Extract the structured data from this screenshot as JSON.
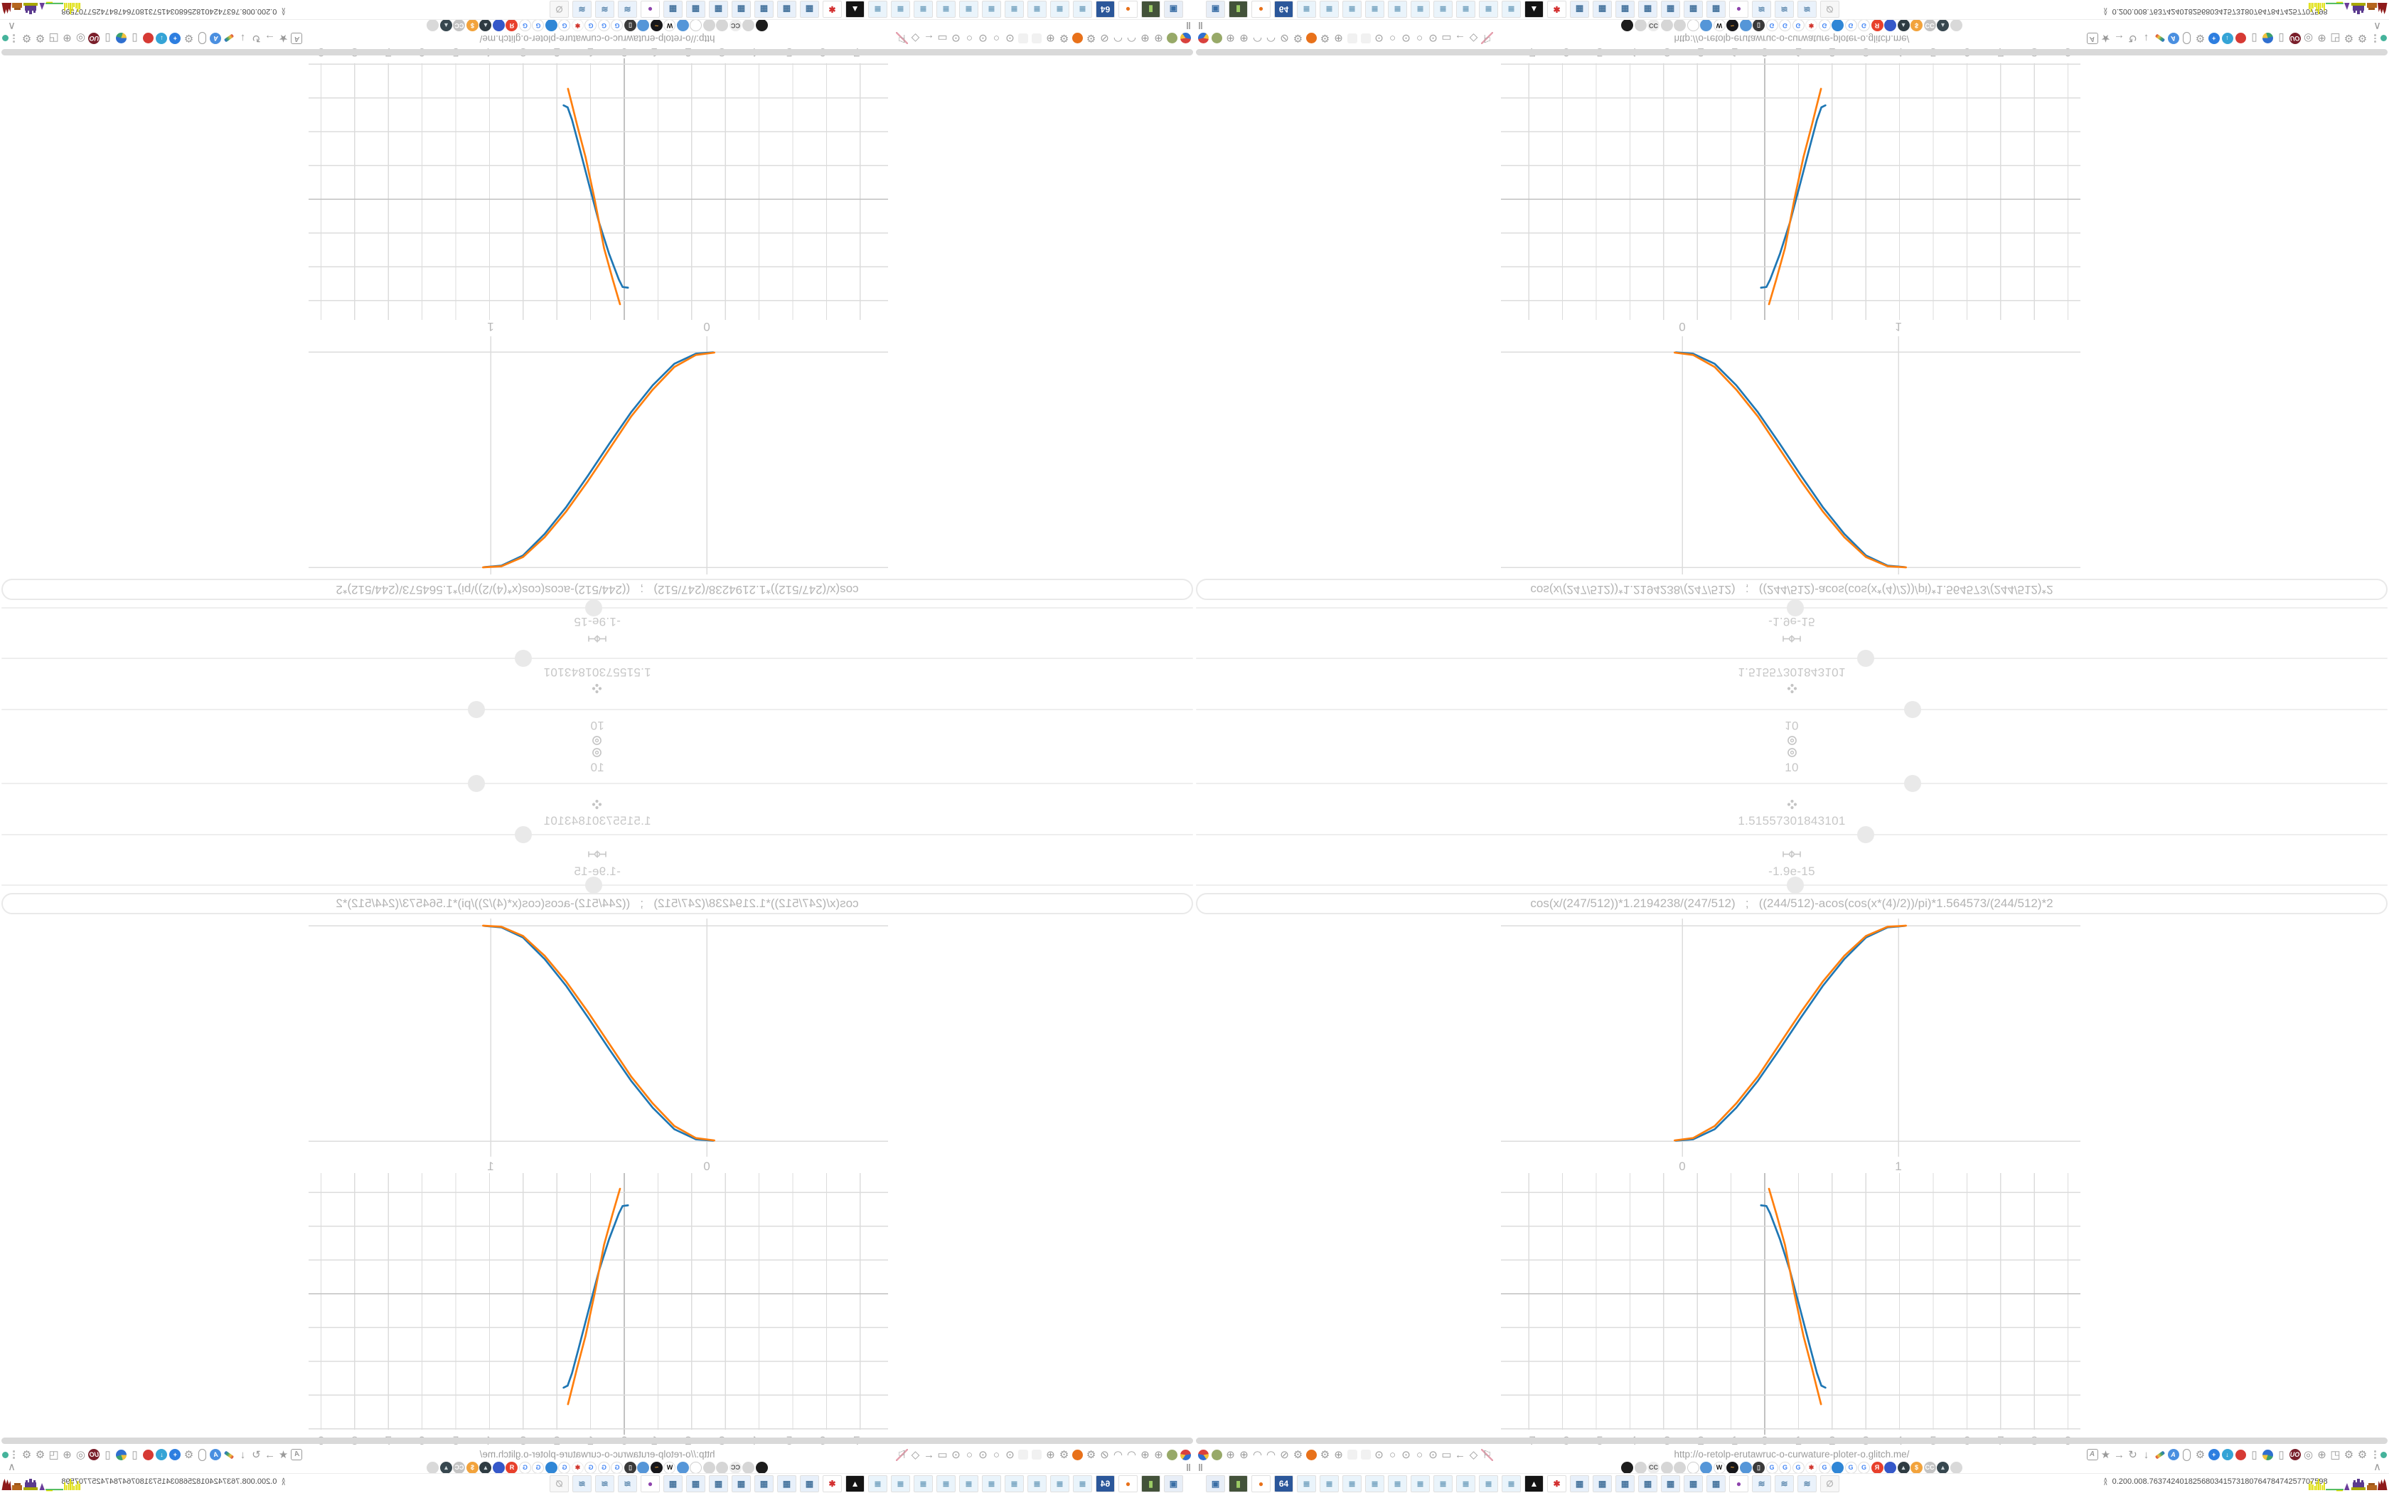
{
  "screen": {
    "calc_rows": [
      {
        "icon": "target-icon",
        "value": "10",
        "slider_x": 1008
      },
      {
        "icon": "clover-icon",
        "value": "1.51557301843101",
        "slider_x": 942
      },
      {
        "icon": "spring-icon",
        "value": "-1.9e-15",
        "slider_x": 843
      }
    ],
    "formula": {
      "value": "cos(x/(247/512))*1.2194238/(247/512)   ;   ((244/512)-acos(cos(x*(4)/2))/pi)*1.564573/(244/512)*2"
    },
    "status_url": "http://o-retolp-erutawruc-o-curwature-ploter-o.glitch.me/",
    "pause_glyph": "‖",
    "collapse_glyph": "∧",
    "tray_stats": [
      "0.20",
      "0.00",
      "8.76",
      "374",
      "240",
      "1825",
      "680",
      "34",
      "1573",
      "1807",
      "64",
      "78",
      "47",
      "42",
      "5770",
      "7598"
    ]
  },
  "chart_data": [
    {
      "type": "line",
      "title": "",
      "xlabel": "",
      "ylabel": "",
      "x_ticks": [
        "0",
        "1"
      ],
      "x_tick_values": [
        0,
        1
      ],
      "y_gridline_values": [
        0,
        1
      ],
      "x_range": [
        -0.84,
        1.84
      ],
      "y_range": [
        -0.07,
        1.01
      ],
      "grid": true,
      "legend": "none",
      "series": [
        {
          "name": "sigmoid-blue",
          "color": "#1f77b4",
          "points": [
            [
              -0.03,
              0.002
            ],
            [
              0.05,
              0.008
            ],
            [
              0.15,
              0.055
            ],
            [
              0.25,
              0.155
            ],
            [
              0.35,
              0.28
            ],
            [
              0.45,
              0.425
            ],
            [
              0.5,
              0.5
            ],
            [
              0.55,
              0.575
            ],
            [
              0.65,
              0.72
            ],
            [
              0.75,
              0.845
            ],
            [
              0.85,
              0.945
            ],
            [
              0.95,
              0.992
            ],
            [
              1.03,
              0.999
            ]
          ]
        },
        {
          "name": "sigmoid-orange",
          "color": "#ff7f0e",
          "points": [
            [
              -0.035,
              0.003
            ],
            [
              0.05,
              0.014
            ],
            [
              0.15,
              0.07
            ],
            [
              0.25,
              0.175
            ],
            [
              0.35,
              0.3
            ],
            [
              0.45,
              0.45
            ],
            [
              0.5,
              0.525
            ],
            [
              0.55,
              0.6
            ],
            [
              0.65,
              0.74
            ],
            [
              0.75,
              0.86
            ],
            [
              0.85,
              0.952
            ],
            [
              0.95,
              0.995
            ],
            [
              1.035,
              1.0
            ]
          ]
        }
      ]
    },
    {
      "type": "line",
      "title": "",
      "xlabel": "",
      "ylabel": "",
      "x_ticks": [
        "−7",
        "−6",
        "−5",
        "−4",
        "−3",
        "−2",
        "−1",
        "0",
        "1",
        "2",
        "3",
        "4",
        "5",
        "6",
        "7",
        "8",
        "9"
      ],
      "x_tick_values": [
        -7,
        -6,
        -5,
        -4,
        -3,
        -2,
        -1,
        0,
        1,
        2,
        3,
        4,
        5,
        6,
        7,
        8,
        9
      ],
      "y_gridline_values": [
        3,
        2,
        1,
        0,
        -1,
        -2,
        -3,
        -4
      ],
      "x_range": [
        -7.8,
        9.4
      ],
      "y_range": [
        -4.0,
        3.6
      ],
      "grid": true,
      "legend": "none",
      "series": [
        {
          "name": "steep-blue",
          "color": "#1f77b4",
          "points": [
            [
              -0.11,
              2.62
            ],
            [
              0.05,
              2.6
            ],
            [
              0.16,
              2.38
            ],
            [
              0.45,
              1.62
            ],
            [
              0.75,
              0.68
            ],
            [
              1.05,
              -0.45
            ],
            [
              1.35,
              -1.6
            ],
            [
              1.55,
              -2.35
            ],
            [
              1.68,
              -2.72
            ],
            [
              1.8,
              -2.78
            ]
          ]
        },
        {
          "name": "steep-orange",
          "color": "#ff7f0e",
          "points": [
            [
              0.127,
              3.11
            ],
            [
              0.35,
              2.35
            ],
            [
              0.6,
              1.45
            ],
            [
              0.88,
              0.0
            ],
            [
              1.15,
              -1.25
            ],
            [
              1.4,
              -2.2
            ],
            [
              1.55,
              -2.8
            ],
            [
              1.67,
              -3.27
            ]
          ]
        }
      ]
    }
  ],
  "left_toolbar": [
    {
      "name": "balloon-icon",
      "type": "balloon"
    },
    {
      "name": "green-orb-icon",
      "type": "dot",
      "color": "#97a968"
    },
    {
      "name": "globe-icon",
      "type": "glyph",
      "glyph": "⊕"
    },
    {
      "name": "globe-icon",
      "type": "glyph",
      "glyph": "⊕"
    },
    {
      "name": "gauge-icon",
      "type": "glyph",
      "glyph": "◠"
    },
    {
      "name": "gauge-icon",
      "type": "glyph",
      "glyph": "◠"
    },
    {
      "name": "globe-blocked-icon",
      "type": "glyph",
      "glyph": "⊘"
    },
    {
      "name": "wrench-icon",
      "type": "glyph",
      "glyph": "⚙"
    },
    {
      "name": "firefox-icon",
      "type": "dot",
      "color": "#e8711a"
    },
    {
      "name": "gear-icon",
      "type": "glyph",
      "glyph": "⚙"
    },
    {
      "name": "globe-icon",
      "type": "glyph",
      "glyph": "⊕"
    },
    {
      "name": "addon-slot-icon",
      "type": "faded"
    },
    {
      "name": "addon-slot-icon",
      "type": "faded"
    },
    {
      "name": "radio-dot-icon",
      "type": "glyph",
      "glyph": "⊙"
    },
    {
      "name": "radio-icon",
      "type": "glyph",
      "glyph": "○"
    },
    {
      "name": "radio-dot-icon",
      "type": "glyph",
      "glyph": "⊙"
    },
    {
      "name": "radio-icon",
      "type": "glyph",
      "glyph": "○"
    },
    {
      "name": "radio-dot-icon",
      "type": "glyph",
      "glyph": "⊙"
    },
    {
      "name": "folder-icon",
      "type": "glyph",
      "glyph": "▭"
    },
    {
      "name": "back-arrow-icon",
      "type": "glyph",
      "glyph": "←"
    },
    {
      "name": "shield-icon",
      "type": "glyph",
      "glyph": "◇"
    },
    {
      "name": "flag-off-icon",
      "type": "glyph",
      "glyph": "⚐",
      "extra": "flagoff"
    }
  ],
  "right_toolbar": [
    {
      "name": "translate-icon",
      "type": "abox",
      "t": "A"
    },
    {
      "name": "star-icon",
      "type": "glyph",
      "glyph": "★"
    },
    {
      "name": "forward-arrow-icon",
      "type": "glyph",
      "glyph": "→"
    },
    {
      "name": "reload-icon",
      "type": "glyph",
      "glyph": "↻"
    },
    {
      "name": "download-icon",
      "type": "glyph",
      "glyph": "↓"
    },
    {
      "name": "pencil-icon",
      "type": "pencil"
    },
    {
      "name": "translate-blue-icon",
      "type": "dott",
      "color": "#4a8fe0",
      "t": "A"
    },
    {
      "name": "mouse-icon",
      "type": "oval"
    },
    {
      "name": "gear-icon",
      "type": "glyph",
      "glyph": "⚙"
    },
    {
      "name": "add-circle-icon",
      "type": "dott",
      "color": "#2d7ee0",
      "t": "+"
    },
    {
      "name": "sync-shield-icon",
      "type": "dott",
      "color": "#35a4d6",
      "t": "↓"
    },
    {
      "name": "record-icon",
      "type": "dot",
      "color": "#d63a34"
    },
    {
      "name": "trash-icon",
      "type": "glyph",
      "glyph": "▯"
    },
    {
      "name": "globe-color-icon",
      "type": "mglobe"
    },
    {
      "name": "archive-icon",
      "type": "glyph",
      "glyph": "▯"
    },
    {
      "name": "shield-red-icon",
      "type": "dott",
      "color": "#7a1f2b",
      "t": "UO"
    },
    {
      "name": "shield-gray-icon",
      "type": "glyph",
      "glyph": "◎"
    },
    {
      "name": "globe-gray-icon",
      "type": "glyph",
      "glyph": "⊕"
    },
    {
      "name": "puzzle-icon",
      "type": "glyph",
      "glyph": "◳"
    },
    {
      "name": "wrench-icon",
      "type": "glyph",
      "glyph": "⚙"
    },
    {
      "name": "gear-icon",
      "type": "glyph",
      "glyph": "⚙"
    }
  ],
  "favicons": [
    {
      "name": "vinyl-favicon",
      "bg": "#1c1c1c",
      "t": "",
      "fg": "#4aa3ff"
    },
    {
      "name": "muted-favicon",
      "bg": "#d6d6d6",
      "t": ""
    },
    {
      "name": "cc-favicon",
      "bg": "#ececec",
      "t": "CC",
      "fg": "#555555"
    },
    {
      "name": "muted-favicon",
      "bg": "#d6d6d6",
      "t": ""
    },
    {
      "name": "muted-favicon",
      "bg": "#d6d6d6",
      "t": ""
    },
    {
      "name": "muted-ring-favicon",
      "bg": "#ffffff",
      "bd": "#cfcfcf",
      "t": ""
    },
    {
      "name": "globe-favicon",
      "bg": "#5596d8",
      "t": ""
    },
    {
      "name": "wikipedia-favicon",
      "bg": "#ffffff",
      "bd": "#dddddd",
      "t": "W",
      "fg": "#111111"
    },
    {
      "name": "wave-favicon",
      "bg": "#17171a",
      "t": "~",
      "fg": "#f0a030"
    },
    {
      "name": "globe-favicon",
      "bg": "#5596d8",
      "t": ""
    },
    {
      "name": "trash-favicon",
      "bg": "#3a3a3a",
      "t": "▯",
      "fg": "#dddddd"
    },
    {
      "name": "translate-favicon",
      "bg": "#ffffff",
      "bd": "#dddddd",
      "t": "G",
      "fg": "#4285f4"
    },
    {
      "name": "google-favicon",
      "bg": "#ffffff",
      "bd": "#dddddd",
      "t": "G",
      "fg": "#4285f4"
    },
    {
      "name": "google-favicon",
      "bg": "#ffffff",
      "bd": "#dddddd",
      "t": "G",
      "fg": "#4285f4"
    },
    {
      "name": "gear-red-favicon",
      "bg": "#ffffff",
      "bd": "#eeeeee",
      "t": "✱",
      "fg": "#d0342c"
    },
    {
      "name": "google-favicon",
      "bg": "#ffffff",
      "bd": "#dddddd",
      "t": "G",
      "fg": "#4285f4"
    },
    {
      "name": "paint-favicon",
      "bg": "#2f86d6",
      "t": ""
    },
    {
      "name": "google-favicon",
      "bg": "#ffffff",
      "bd": "#dddddd",
      "t": "G",
      "fg": "#4285f4"
    },
    {
      "name": "google-favicon",
      "bg": "#ffffff",
      "bd": "#dddddd",
      "t": "G",
      "fg": "#4285f4"
    },
    {
      "name": "yandex-favicon",
      "bg": "#e8402c",
      "t": "Я",
      "fg": "#ffffff"
    },
    {
      "name": "grid-globe-favicon",
      "bg": "#3558c9",
      "t": ""
    },
    {
      "name": "photo-favicon",
      "bg": "#2e3b42",
      "t": "▴",
      "fg": "#cfd8dc"
    },
    {
      "name": "coin-favicon",
      "bg": "#f2a33c",
      "t": "$",
      "fg": "#ffffff"
    },
    {
      "name": "cc-gray-favicon",
      "bg": "#c4c4c4",
      "t": "CC",
      "fg": "#ffffff"
    },
    {
      "name": "photo-favicon",
      "bg": "#37474f",
      "t": "▴",
      "fg": "#cfd8dc"
    },
    {
      "name": "hourglass-favicon",
      "bg": "#d9d9d9",
      "t": ""
    }
  ],
  "taskbar_apps": [
    {
      "name": "display-app",
      "bg": "#e8eef7",
      "glyph": "▣",
      "fg": "#3a6ea5"
    },
    {
      "name": "console-app",
      "bg": "#43523a",
      "glyph": "▮",
      "fg": "#9ccc65"
    },
    {
      "name": "firefox-app",
      "bg": "#ffffff",
      "glyph": "●",
      "fg": "#e8711a"
    },
    {
      "name": "floppy64-app",
      "bg": "#2b579a",
      "glyph": "64",
      "fg": "#ffffff"
    },
    {
      "name": "notepad-app",
      "bg": "#eaf4fb",
      "glyph": "≣",
      "fg": "#6f9fbd"
    },
    {
      "name": "notepad-app",
      "bg": "#eaf4fb",
      "glyph": "≣",
      "fg": "#6f9fbd"
    },
    {
      "name": "notepad-app",
      "bg": "#eaf4fb",
      "glyph": "≣",
      "fg": "#6f9fbd"
    },
    {
      "name": "notepad-app",
      "bg": "#eaf4fb",
      "glyph": "≣",
      "fg": "#6f9fbd"
    },
    {
      "name": "notepad-app",
      "bg": "#eaf4fb",
      "glyph": "≣",
      "fg": "#6f9fbd"
    },
    {
      "name": "notepad-app",
      "bg": "#eaf4fb",
      "glyph": "≣",
      "fg": "#6f9fbd"
    },
    {
      "name": "notepad-app",
      "bg": "#eaf4fb",
      "glyph": "≣",
      "fg": "#6f9fbd"
    },
    {
      "name": "notepad-app",
      "bg": "#eaf4fb",
      "glyph": "≣",
      "fg": "#6f9fbd"
    },
    {
      "name": "notepad-app",
      "bg": "#eaf4fb",
      "glyph": "≣",
      "fg": "#6f9fbd"
    },
    {
      "name": "notepad-app",
      "bg": "#eaf4fb",
      "glyph": "≣",
      "fg": "#6f9fbd"
    },
    {
      "name": "cat-app",
      "bg": "#141414",
      "glyph": "▲",
      "fg": "#ffffff"
    },
    {
      "name": "redgear-app",
      "bg": "#ffffff",
      "glyph": "✱",
      "fg": "#d32f2f"
    },
    {
      "name": "calculator-app",
      "bg": "#e8f0fa",
      "glyph": "▦",
      "fg": "#49769f"
    },
    {
      "name": "calculator-app",
      "bg": "#e8f0fa",
      "glyph": "▦",
      "fg": "#49769f"
    },
    {
      "name": "calculator-app",
      "bg": "#e8f0fa",
      "glyph": "▦",
      "fg": "#49769f"
    },
    {
      "name": "calculator-app",
      "bg": "#e8f0fa",
      "glyph": "▦",
      "fg": "#49769f"
    },
    {
      "name": "calculator-app",
      "bg": "#e8f0fa",
      "glyph": "▦",
      "fg": "#49769f"
    },
    {
      "name": "calculator-app",
      "bg": "#e8f0fa",
      "glyph": "▦",
      "fg": "#49769f"
    },
    {
      "name": "calculator-app",
      "bg": "#e8f0fa",
      "glyph": "▦",
      "fg": "#49769f"
    },
    {
      "name": "monkey-app",
      "bg": "#ffffff",
      "glyph": "●",
      "fg": "#8e44ad"
    },
    {
      "name": "scroll-app",
      "bg": "#eaf2fb",
      "glyph": "≋",
      "fg": "#5b87ad"
    },
    {
      "name": "scroll-app",
      "bg": "#eaf2fb",
      "glyph": "≋",
      "fg": "#5b87ad"
    },
    {
      "name": "scroll-app",
      "bg": "#eaf2fb",
      "glyph": "≋",
      "fg": "#5b87ad"
    },
    {
      "name": "muted-app",
      "bg": "#f7f7f7",
      "glyph": "∅",
      "fg": "#b5b5b5"
    }
  ],
  "colors": {
    "curve_blue": "#1f77b4",
    "curve_orange": "#ff7f0e",
    "gridline": "#dcdcdc",
    "axisline": "#c2c2c2",
    "tick_label": "#b8b8b8",
    "status_green": "#45b39b"
  }
}
